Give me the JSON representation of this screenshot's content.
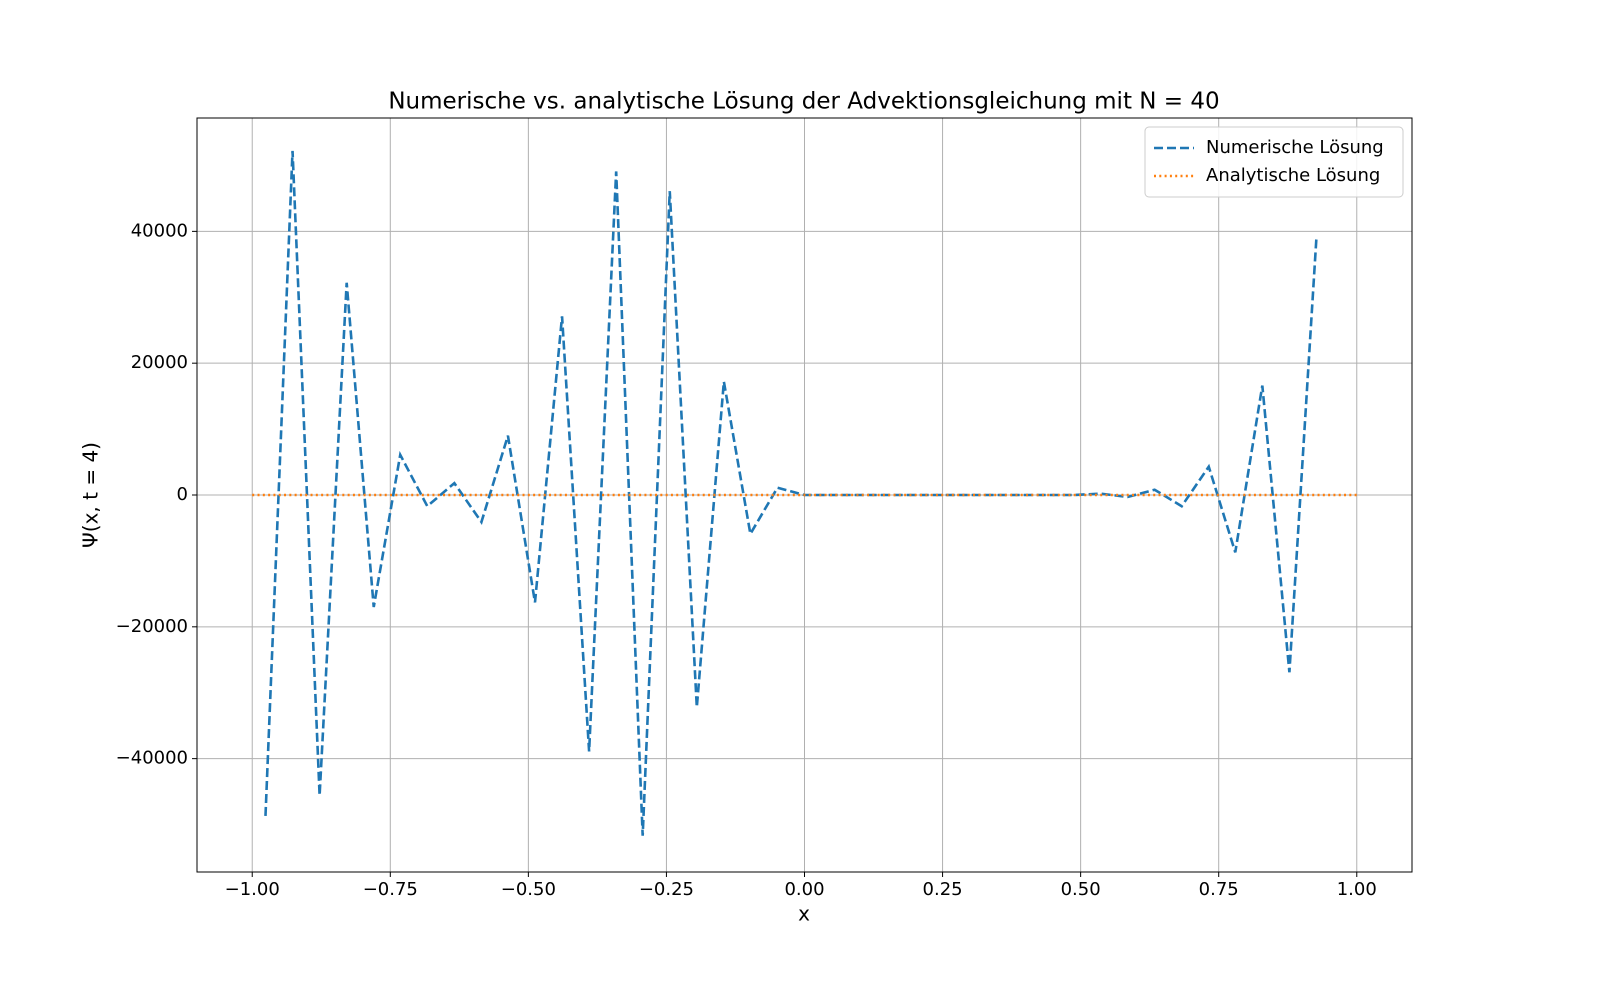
{
  "chart_data": {
    "type": "line",
    "title": "Numerische vs. analytische Lösung der Advektionsgleichung mit N = 40",
    "x_label": "x",
    "y_label": "Ψ(x, t = 4)",
    "xlim": [
      -1.1,
      1.1
    ],
    "xticks": [
      {
        "value": -1,
        "label": "−1.00"
      },
      {
        "value": -0.75,
        "label": "−0.75"
      },
      {
        "value": -0.5,
        "label": "−0.50"
      },
      {
        "value": -0.25,
        "label": "−0.25"
      },
      {
        "value": 0,
        "label": "0.00"
      },
      {
        "value": 0.25,
        "label": "0.25"
      },
      {
        "value": 0.5,
        "label": "0.50"
      },
      {
        "value": 0.75,
        "label": "0.75"
      },
      {
        "value": 1,
        "label": "1.00"
      }
    ],
    "ylim": [
      -57200,
      57200
    ],
    "yticks": [
      {
        "value": -40000,
        "label": "−40000"
      },
      {
        "value": -20000,
        "label": "−20000"
      },
      0,
      20000,
      40000
    ],
    "grid": true,
    "legend": "upper right",
    "series": [
      {
        "name": "Numerische Lösung",
        "color": "#1f77b4",
        "dash": "dashed",
        "x": [
          -0.976,
          -0.927,
          -0.878,
          -0.829,
          -0.78,
          -0.732,
          -0.683,
          -0.634,
          -0.585,
          -0.537,
          -0.488,
          -0.439,
          -0.39,
          -0.341,
          -0.293,
          -0.244,
          -0.195,
          -0.146,
          -0.098,
          -0.049,
          0,
          0.049,
          0.098,
          0.146,
          0.195,
          0.244,
          0.293,
          0.341,
          0.39,
          0.439,
          0.488,
          0.537,
          0.585,
          0.634,
          0.683,
          0.732,
          0.78,
          0.829,
          0.878,
          0.927
        ],
        "values": [
          -48700,
          52200,
          -45600,
          32200,
          -17000,
          6100,
          -1700,
          1800,
          -4100,
          9000,
          -16300,
          27100,
          -38900,
          49100,
          -51700,
          46100,
          -32200,
          17200,
          -5900,
          1100,
          0,
          0,
          0,
          0,
          0,
          0,
          0,
          0,
          0,
          0,
          0,
          200,
          -300,
          800,
          -1700,
          4300,
          -8700,
          16600,
          -26900,
          39100
        ]
      },
      {
        "name": "Analytische Lösung",
        "color": "#ff7f0e",
        "dash": "dotted",
        "x": [
          -1,
          -0.5,
          0,
          0.5,
          1
        ],
        "values": [
          0,
          0,
          0,
          0,
          0
        ]
      }
    ]
  }
}
